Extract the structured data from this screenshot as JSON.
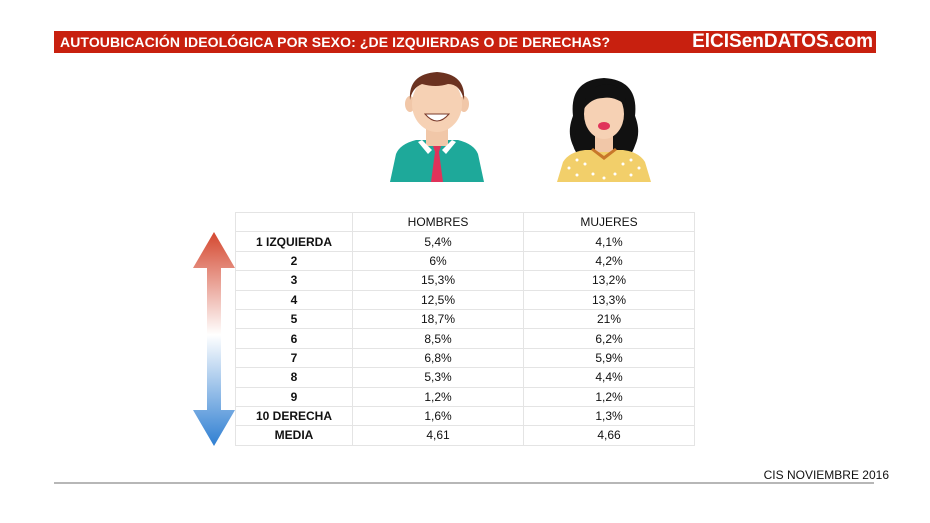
{
  "header": {
    "title": "AUTOUBICACIÓN IDEOLÓGICA POR SEXO: ¿DE IZQUIERDAS O DE DERECHAS?",
    "brand": "ElCISenDATOS.com",
    "background_color": "#c8200f"
  },
  "icons": {
    "male": "man-avatar-icon",
    "female": "woman-avatar-icon",
    "scale": "left-right-gradient-arrow-icon"
  },
  "source": "CIS NOVIEMBRE 2016",
  "chart_data": {
    "type": "table",
    "columns": [
      "",
      "HOMBRES",
      "MUJERES"
    ],
    "rows": [
      {
        "label": "1 IZQUIERDA",
        "hombres": "5,4%",
        "mujeres": "4,1%"
      },
      {
        "label": "2",
        "hombres": "6%",
        "mujeres": "4,2%"
      },
      {
        "label": "3",
        "hombres": "15,3%",
        "mujeres": "13,2%"
      },
      {
        "label": "4",
        "hombres": "12,5%",
        "mujeres": "13,3%"
      },
      {
        "label": "5",
        "hombres": "18,7%",
        "mujeres": "21%"
      },
      {
        "label": "6",
        "hombres": "8,5%",
        "mujeres": "6,2%"
      },
      {
        "label": "7",
        "hombres": "6,8%",
        "mujeres": "5,9%"
      },
      {
        "label": "8",
        "hombres": "5,3%",
        "mujeres": "4,4%"
      },
      {
        "label": "9",
        "hombres": "1,2%",
        "mujeres": "1,2%"
      },
      {
        "label": "10 DERECHA",
        "hombres": "1,6%",
        "mujeres": "1,3%"
      },
      {
        "label": "MEDIA",
        "hombres": "4,61",
        "mujeres": "4,66"
      }
    ],
    "arrow_colors": {
      "top": "#d4472f",
      "bottom": "#2f7fd2"
    }
  }
}
